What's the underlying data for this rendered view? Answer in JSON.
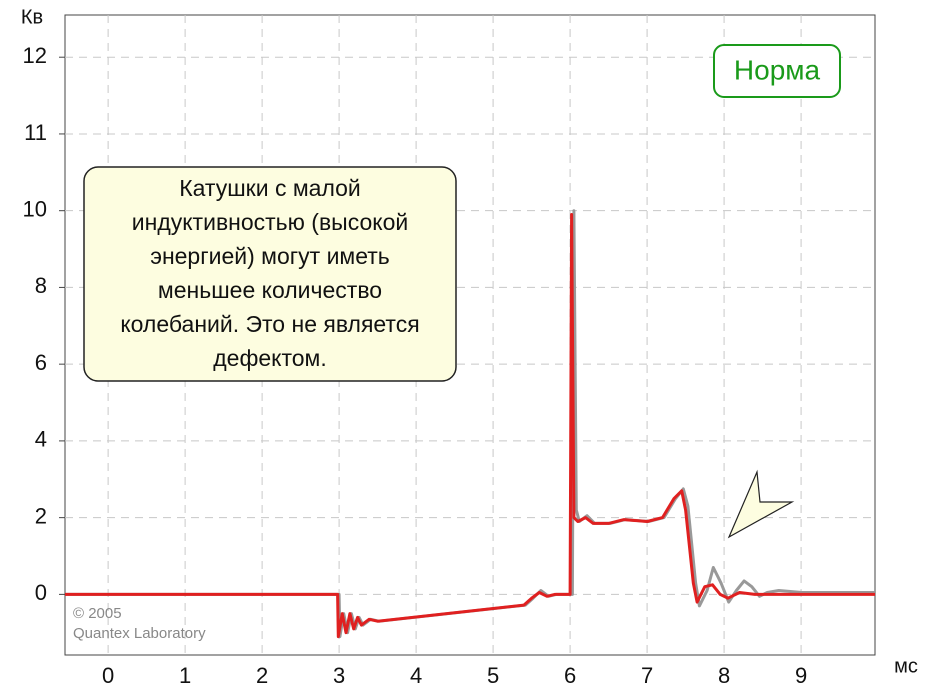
{
  "chart_data": {
    "type": "line",
    "y_label": "Кв",
    "x_label": "мс",
    "xlim": [
      -0.56,
      9.96
    ],
    "xticks": [
      0,
      1,
      2,
      3,
      4,
      5,
      6,
      7,
      8,
      9
    ],
    "ylim": [
      -1.58,
      12.55
    ],
    "yticks": [
      0,
      2,
      4,
      6,
      8,
      10,
      11,
      12
    ],
    "y_tick_spacing": "even",
    "grid": true,
    "series": [
      {
        "color": "#999999",
        "x": [
          -0.56,
          3.0,
          3.01,
          3.06,
          3.11,
          3.16,
          3.21,
          3.26,
          3.31,
          3.41,
          3.52,
          5.42,
          5.52,
          5.62,
          5.72,
          5.82,
          6.03,
          6.05,
          6.08,
          6.12,
          6.22,
          6.32,
          6.52,
          6.72,
          7.02,
          7.22,
          7.37,
          7.47,
          7.53,
          7.63,
          7.68,
          7.78,
          7.86,
          7.96,
          8.06,
          8.16,
          8.26,
          8.36,
          8.46,
          8.56,
          8.71,
          9.01,
          9.96
        ],
        "values": [
          0,
          0,
          -1.1,
          -0.5,
          -1.0,
          -0.5,
          -0.9,
          -0.6,
          -0.8,
          -0.65,
          -0.7,
          -0.28,
          -0.1,
          0.1,
          -0.05,
          0,
          0,
          10.0,
          2.2,
          1.9,
          2.05,
          1.85,
          1.85,
          1.95,
          1.9,
          2.0,
          2.5,
          2.75,
          2.3,
          0.3,
          -0.3,
          0.1,
          0.7,
          0.3,
          -0.2,
          0.1,
          0.35,
          0.2,
          -0.05,
          0.05,
          0.1,
          0.05,
          0.05
        ]
      },
      {
        "color": "#e02020",
        "x": [
          -0.56,
          2.98,
          2.99,
          3.04,
          3.09,
          3.14,
          3.19,
          3.24,
          3.29,
          3.39,
          3.5,
          5.4,
          5.5,
          5.6,
          5.7,
          5.8,
          6.0,
          6.02,
          6.05,
          6.1,
          6.2,
          6.3,
          6.5,
          6.7,
          7.0,
          7.2,
          7.35,
          7.45,
          7.5,
          7.6,
          7.65,
          7.75,
          7.85,
          7.95,
          8.05,
          8.2,
          8.4,
          9.96
        ],
        "values": [
          0,
          0,
          -1.1,
          -0.5,
          -1.0,
          -0.5,
          -0.9,
          -0.6,
          -0.8,
          -0.65,
          -0.7,
          -0.28,
          -0.1,
          0.05,
          -0.05,
          0,
          0,
          9.9,
          2.0,
          1.9,
          2.0,
          1.85,
          1.85,
          1.95,
          1.9,
          2.0,
          2.5,
          2.7,
          2.2,
          0.3,
          -0.2,
          0.2,
          0.25,
          0,
          -0.1,
          0.05,
          0,
          0
        ]
      }
    ],
    "status": "Норма",
    "note": [
      "Катушки с малой",
      "индуктивностью (высокой",
      "энергией) могут иметь",
      "меньшее количество",
      "колебаний. Это не является",
      "дефектом."
    ],
    "copyright": [
      "© 2005",
      "Quantex Laboratory"
    ]
  }
}
